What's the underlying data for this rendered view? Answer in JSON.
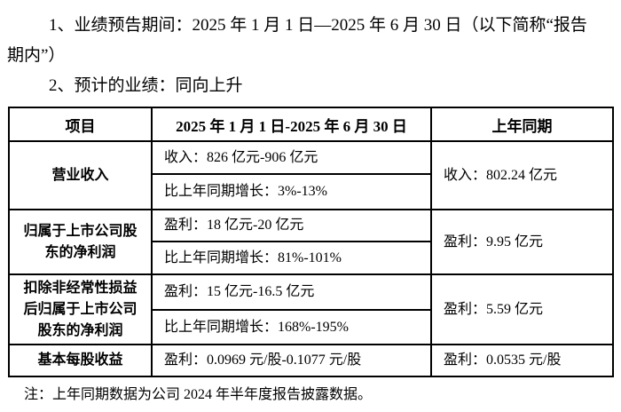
{
  "intro": {
    "para1_line1": "1、业绩预告期间：2025 年 1 月 1 日—2025 年 6 月 30 日（以下简称“报告",
    "para1_line2": "期内”）",
    "para2": "2、预计的业绩：同向上升"
  },
  "table": {
    "headers": {
      "item": "项目",
      "current_period": "2025 年 1 月 1 日-2025 年 6 月 30 日",
      "prior_period": "上年同期"
    },
    "rows": [
      {
        "item": "营业收入",
        "current": [
          "收入：826 亿元-906 亿元",
          "比上年同期增长：3%-13%"
        ],
        "prior": "收入：802.24 亿元"
      },
      {
        "item": "归属于上市公司股东的净利润",
        "current": [
          "盈利：18 亿元-20 亿元",
          "比上年同期增长：81%-101%"
        ],
        "prior": "盈利：9.95 亿元"
      },
      {
        "item": "扣除非经常性损益后归属于上市公司股东的净利润",
        "current": [
          "盈利：15 亿元-16.5 亿元",
          "比上年同期增长：168%-195%"
        ],
        "prior": "盈利：5.59 亿元"
      },
      {
        "item": "基本每股收益",
        "current": [
          "盈利：0.0969 元/股-0.1077 元/股"
        ],
        "prior": "盈利：0.0535 元/股"
      }
    ]
  },
  "note": "注：上年同期数据为公司 2024 年半年度报告披露数据。"
}
